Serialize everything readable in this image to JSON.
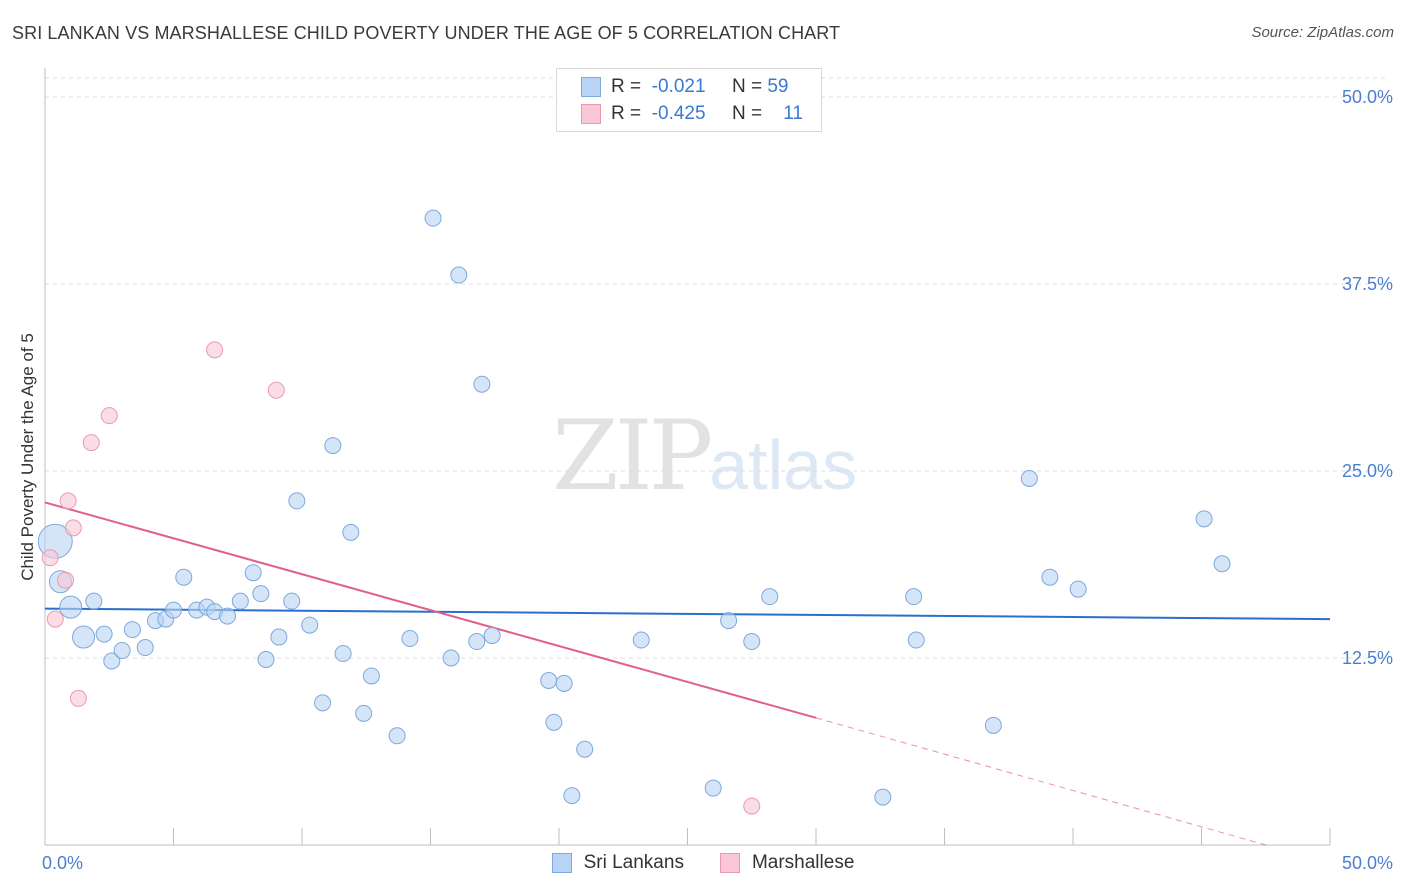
{
  "title": "SRI LANKAN VS MARSHALLESE CHILD POVERTY UNDER THE AGE OF 5 CORRELATION CHART",
  "source": "Source: ZipAtlas.com",
  "watermark": {
    "zip": "ZIP",
    "atlas": "atlas"
  },
  "legend": {
    "rows": [
      {
        "r_label": "R =",
        "r_value": "-0.021",
        "n_label": "N =",
        "n_value": "59"
      },
      {
        "r_label": "R =",
        "r_value": "-0.425",
        "n_label": "N =",
        "n_value": "11"
      }
    ]
  },
  "bottom_legend": [
    "Sri Lankans",
    "Marshallese"
  ],
  "colors": {
    "blue_fill": "#b8d3f3",
    "blue_stroke": "#7fa8dc",
    "blue_line": "#2a6fcf",
    "pink_fill": "#f9c7d6",
    "pink_stroke": "#e89ab2",
    "pink_line": "#e0608b",
    "tick_text": "#4a7fd0"
  },
  "chart_data": {
    "type": "scatter",
    "title": "SRI LANKAN VS MARSHALLESE CHILD POVERTY UNDER THE AGE OF 5 CORRELATION CHART",
    "xlabel": "",
    "ylabel": "Child Poverty Under the Age of 5",
    "xlim": [
      0,
      50
    ],
    "ylim": [
      0,
      50
    ],
    "x_tick_labels": [
      "0.0%",
      "50.0%"
    ],
    "y_ticks": [
      12.5,
      25.0,
      37.5,
      50.0
    ],
    "y_tick_labels": [
      "12.5%",
      "25.0%",
      "37.5%",
      "50.0%"
    ],
    "grid": true,
    "series": [
      {
        "name": "Sri Lankans",
        "r": -0.021,
        "n": 59,
        "trend": {
          "x0": 0,
          "y0": 15.8,
          "x1": 50,
          "y1": 15.1
        },
        "points": [
          [
            0.4,
            20.3,
            "large"
          ],
          [
            0.6,
            17.6,
            "medium"
          ],
          [
            1.0,
            15.9,
            "medium"
          ],
          [
            1.5,
            13.9,
            "medium"
          ],
          [
            1.9,
            16.3
          ],
          [
            2.3,
            14.1
          ],
          [
            2.6,
            12.3
          ],
          [
            3.0,
            13.0
          ],
          [
            3.4,
            14.4
          ],
          [
            3.9,
            13.2
          ],
          [
            4.3,
            15.0
          ],
          [
            4.7,
            15.1
          ],
          [
            5.0,
            15.7
          ],
          [
            5.4,
            17.9
          ],
          [
            5.9,
            15.7
          ],
          [
            6.3,
            15.9
          ],
          [
            6.6,
            15.6
          ],
          [
            7.1,
            15.3
          ],
          [
            7.6,
            16.3
          ],
          [
            8.1,
            18.2
          ],
          [
            8.4,
            16.8
          ],
          [
            8.6,
            12.4
          ],
          [
            9.1,
            13.9
          ],
          [
            9.6,
            16.3
          ],
          [
            9.8,
            23.0
          ],
          [
            10.3,
            14.7
          ],
          [
            10.8,
            9.5
          ],
          [
            11.2,
            26.7
          ],
          [
            11.6,
            12.8
          ],
          [
            11.9,
            20.9
          ],
          [
            12.4,
            8.8
          ],
          [
            12.7,
            11.3
          ],
          [
            13.7,
            7.3
          ],
          [
            14.2,
            13.8
          ],
          [
            15.1,
            41.9
          ],
          [
            15.8,
            12.5
          ],
          [
            16.1,
            38.1
          ],
          [
            16.8,
            13.6
          ],
          [
            17.0,
            30.8
          ],
          [
            17.4,
            14.0
          ],
          [
            19.6,
            11.0
          ],
          [
            19.8,
            8.2
          ],
          [
            20.2,
            10.8
          ],
          [
            20.5,
            3.3
          ],
          [
            21.0,
            6.4
          ],
          [
            23.2,
            13.7
          ],
          [
            26.0,
            3.8
          ],
          [
            26.6,
            15.0
          ],
          [
            27.5,
            13.6
          ],
          [
            28.2,
            16.6
          ],
          [
            32.6,
            3.2
          ],
          [
            33.8,
            16.6
          ],
          [
            33.9,
            13.7
          ],
          [
            36.9,
            8.0
          ],
          [
            38.3,
            24.5
          ],
          [
            39.1,
            17.9
          ],
          [
            40.2,
            17.1
          ],
          [
            45.1,
            21.8
          ],
          [
            45.8,
            18.8
          ]
        ]
      },
      {
        "name": "Marshallese",
        "r": -0.425,
        "n": 11,
        "trend": {
          "x0": 0,
          "y0": 22.9,
          "x1": 30,
          "y1": 8.5
        },
        "trend_dashed": {
          "x0": 30,
          "y0": 8.5,
          "x1": 47.5,
          "y1": 0.0
        },
        "points": [
          [
            0.2,
            19.2
          ],
          [
            0.4,
            15.1
          ],
          [
            0.8,
            17.7
          ],
          [
            0.9,
            23.0
          ],
          [
            1.1,
            21.2
          ],
          [
            1.3,
            9.8
          ],
          [
            1.8,
            26.9
          ],
          [
            2.5,
            28.7
          ],
          [
            6.6,
            33.1
          ],
          [
            9.0,
            30.4
          ],
          [
            27.5,
            2.6
          ]
        ]
      }
    ]
  }
}
